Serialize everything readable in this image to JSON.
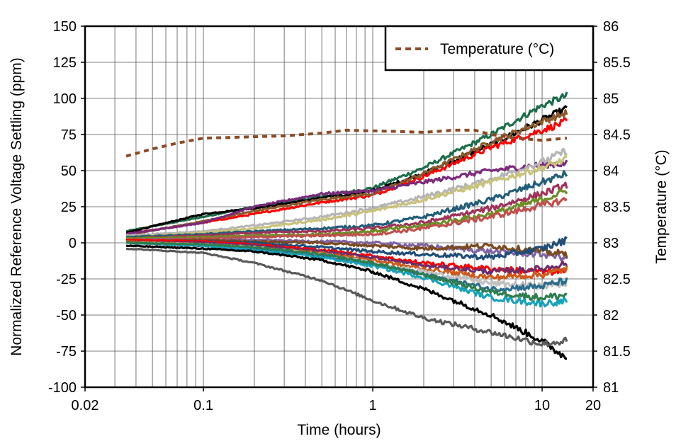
{
  "chart_data": {
    "type": "line",
    "xlabel": "Time (hours)",
    "ylabel": "Normalized Reference Voltage Settling (ppm)",
    "y2label": "Temperature (°C)",
    "x_scale": "log",
    "xlim": [
      0.02,
      20
    ],
    "ylim": [
      -100,
      150
    ],
    "y2lim": [
      81,
      86
    ],
    "x_ticks": [
      0.02,
      0.1,
      1,
      10,
      20
    ],
    "x_tick_labels": [
      "0.02",
      "0.1",
      "1",
      "10",
      "20"
    ],
    "y_ticks": [
      -100,
      -75,
      -50,
      -25,
      0,
      25,
      50,
      75,
      100,
      125,
      150
    ],
    "y_tick_labels": [
      "-100",
      "-75",
      "-50",
      "-25",
      "0",
      "25",
      "50",
      "75",
      "100",
      "125",
      "150"
    ],
    "y2_ticks": [
      81,
      81.5,
      82,
      82.5,
      83,
      83.5,
      84,
      84.5,
      85,
      85.5,
      86
    ],
    "y2_tick_labels": [
      "81",
      "81.5",
      "82",
      "82.5",
      "83",
      "83.5",
      "84",
      "84.5",
      "85",
      "85.5",
      "86"
    ],
    "grid": true,
    "legend": {
      "position": "top-right",
      "entries": [
        {
          "label": "Temperature (°C)",
          "style": "dashed",
          "color": "#8b4a24"
        }
      ]
    },
    "temperature_series": {
      "name": "Temperature (°C)",
      "axis": "right",
      "color": "#8b4a24",
      "x": [
        0.035,
        0.05,
        0.07,
        0.1,
        0.15,
        0.2,
        0.3,
        0.5,
        0.7,
        1,
        1.5,
        2,
        3,
        4,
        5,
        7,
        10,
        14
      ],
      "y": [
        84.2,
        84.3,
        84.38,
        84.45,
        84.46,
        84.47,
        84.48,
        84.52,
        84.56,
        84.55,
        84.54,
        84.53,
        84.56,
        84.56,
        84.5,
        84.45,
        84.42,
        84.45
      ]
    },
    "settling_series": [
      {
        "color": "#1b6e4b",
        "x": [
          0.035,
          0.1,
          0.2,
          0.5,
          1,
          2,
          5,
          10,
          14
        ],
        "y": [
          8,
          18,
          25,
          32,
          38,
          52,
          75,
          95,
          102
        ]
      },
      {
        "color": "#000000",
        "x": [
          0.035,
          0.1,
          0.2,
          0.5,
          1,
          2,
          5,
          10,
          14
        ],
        "y": [
          7,
          20,
          24,
          31,
          36,
          48,
          68,
          85,
          93
        ]
      },
      {
        "color": "#ff0000",
        "x": [
          0.035,
          0.1,
          0.2,
          0.5,
          1,
          2,
          5,
          10,
          14
        ],
        "y": [
          6,
          14,
          20,
          28,
          33,
          46,
          66,
          78,
          84
        ]
      },
      {
        "color": "#8b5a2b",
        "x": [
          0.035,
          0.1,
          0.2,
          0.5,
          1,
          2,
          5,
          10,
          14
        ],
        "y": [
          5,
          15,
          22,
          30,
          34,
          48,
          70,
          84,
          90
        ]
      },
      {
        "color": "#7b2a7b",
        "x": [
          0.035,
          0.1,
          0.2,
          0.5,
          1,
          2,
          5,
          10,
          14
        ],
        "y": [
          6,
          14,
          25,
          34,
          36,
          42,
          50,
          54,
          55
        ]
      },
      {
        "color": "#b5b5b5",
        "x": [
          0.035,
          0.1,
          0.2,
          0.5,
          1,
          2,
          5,
          10,
          14
        ],
        "y": [
          5,
          8,
          12,
          18,
          24,
          32,
          44,
          56,
          64
        ]
      },
      {
        "color": "#c8c27a",
        "x": [
          0.035,
          0.1,
          0.2,
          0.5,
          1,
          2,
          5,
          10,
          14
        ],
        "y": [
          4,
          7,
          10,
          16,
          22,
          30,
          42,
          52,
          58
        ]
      },
      {
        "color": "#225e79",
        "x": [
          0.035,
          0.1,
          0.2,
          0.5,
          1,
          2,
          5,
          10,
          14
        ],
        "y": [
          4,
          6,
          8,
          10,
          12,
          18,
          30,
          42,
          48
        ]
      },
      {
        "color": "#a0325a",
        "x": [
          0.035,
          0.1,
          0.2,
          0.5,
          1,
          2,
          5,
          10,
          14
        ],
        "y": [
          3,
          5,
          7,
          8,
          10,
          14,
          24,
          34,
          40
        ]
      },
      {
        "color": "#6b8e23",
        "x": [
          0.035,
          0.1,
          0.2,
          0.5,
          1,
          2,
          5,
          10,
          14
        ],
        "y": [
          3,
          4,
          5,
          6,
          8,
          12,
          20,
          30,
          36
        ]
      },
      {
        "color": "#c0504d",
        "x": [
          0.035,
          0.1,
          0.2,
          0.5,
          1,
          2,
          5,
          10,
          14
        ],
        "y": [
          2,
          3,
          4,
          5,
          6,
          10,
          18,
          26,
          30
        ]
      },
      {
        "color": "#8064a2",
        "x": [
          0.035,
          0.1,
          0.2,
          0.5,
          1,
          2,
          5,
          10,
          14
        ],
        "y": [
          2,
          2,
          2,
          1,
          0,
          -2,
          -6,
          -8,
          -10
        ]
      },
      {
        "color": "#7a4a20",
        "x": [
          0.035,
          0.1,
          0.2,
          0.5,
          1,
          2,
          5,
          10,
          14
        ],
        "y": [
          1,
          2,
          1,
          0,
          -2,
          -4,
          -2,
          -6,
          -8
        ]
      },
      {
        "color": "#1f4e79",
        "x": [
          0.035,
          0.1,
          0.2,
          0.5,
          1,
          2,
          5,
          10,
          14
        ],
        "y": [
          1,
          1,
          0,
          -3,
          -6,
          -8,
          -10,
          -4,
          2
        ]
      },
      {
        "color": "#ff0000",
        "x": [
          0.035,
          0.1,
          0.2,
          0.5,
          1,
          2,
          5,
          10,
          14
        ],
        "y": [
          2,
          1,
          -1,
          -5,
          -9,
          -14,
          -18,
          -20,
          -20
        ]
      },
      {
        "color": "#6b2c6b",
        "x": [
          0.035,
          0.1,
          0.2,
          0.5,
          1,
          2,
          5,
          10,
          14
        ],
        "y": [
          1,
          0,
          -2,
          -6,
          -10,
          -16,
          -20,
          -18,
          -14
        ]
      },
      {
        "color": "#cc5a1a",
        "x": [
          0.035,
          0.1,
          0.2,
          0.5,
          1,
          2,
          5,
          10,
          14
        ],
        "y": [
          1,
          -1,
          -3,
          -7,
          -12,
          -18,
          -24,
          -22,
          -18
        ]
      },
      {
        "color": "#c0c0c0",
        "x": [
          0.035,
          0.1,
          0.2,
          0.5,
          1,
          2,
          5,
          10,
          14
        ],
        "y": [
          0,
          -1,
          -3,
          -8,
          -14,
          -20,
          -28,
          -30,
          -28
        ]
      },
      {
        "color": "#2b6c8c",
        "x": [
          0.035,
          0.1,
          0.2,
          0.5,
          1,
          2,
          5,
          10,
          14
        ],
        "y": [
          0,
          -2,
          -4,
          -9,
          -15,
          -22,
          -32,
          -30,
          -26
        ]
      },
      {
        "color": "#17a2b8",
        "x": [
          0.035,
          0.1,
          0.2,
          0.5,
          1,
          2,
          5,
          10,
          14
        ],
        "y": [
          0,
          -2,
          -5,
          -10,
          -16,
          -24,
          -38,
          -42,
          -40
        ]
      },
      {
        "color": "#2e7d4f",
        "x": [
          0.035,
          0.1,
          0.2,
          0.5,
          1,
          2,
          5,
          10,
          14
        ],
        "y": [
          0,
          -1,
          -3,
          -8,
          -14,
          -22,
          -34,
          -38,
          -36
        ]
      },
      {
        "color": "#000000",
        "x": [
          0.035,
          0.1,
          0.2,
          0.5,
          1,
          2,
          5,
          10,
          14
        ],
        "y": [
          -2,
          -4,
          -6,
          -12,
          -20,
          -32,
          -50,
          -68,
          -80
        ]
      },
      {
        "color": "#5a5a5a",
        "x": [
          0.035,
          0.1,
          0.2,
          0.5,
          1,
          2,
          5,
          10,
          14
        ],
        "y": [
          -4,
          -7,
          -14,
          -26,
          -40,
          -52,
          -62,
          -70,
          -68
        ]
      }
    ]
  }
}
